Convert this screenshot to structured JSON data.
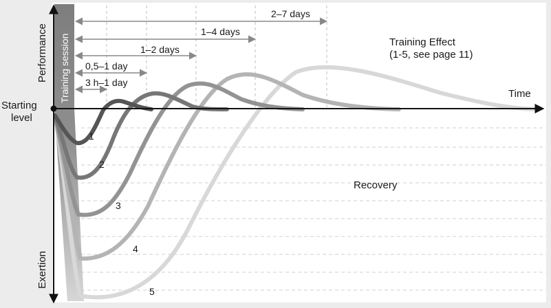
{
  "labels": {
    "training_session": "Training session",
    "performance": "Performance",
    "exertion": "Exertion",
    "starting_level_line1": "Starting",
    "starting_level_line2": "level",
    "time": "Time",
    "training_effect_line1": "Training Effect",
    "training_effect_line2": "(1-5, see  page 11)",
    "recovery": "Recovery"
  },
  "durations": [
    {
      "label": "3 h–1 day"
    },
    {
      "label": "0,5–1 day"
    },
    {
      "label": "1–2 days"
    },
    {
      "label": "1–4 days"
    },
    {
      "label": "2–7 days"
    }
  ],
  "curves": [
    {
      "label": "1",
      "color": "#555555"
    },
    {
      "label": "2",
      "color": "#777777"
    },
    {
      "label": "3",
      "color": "#939393"
    },
    {
      "label": "4",
      "color": "#b4b4b4"
    },
    {
      "label": "5",
      "color": "#d8d8d8"
    }
  ],
  "colors": {
    "background": "#ececec",
    "panel": "#ffffff",
    "training_bar": "#8a8a8a",
    "axis": "#111111",
    "arrow": "#888888"
  }
}
